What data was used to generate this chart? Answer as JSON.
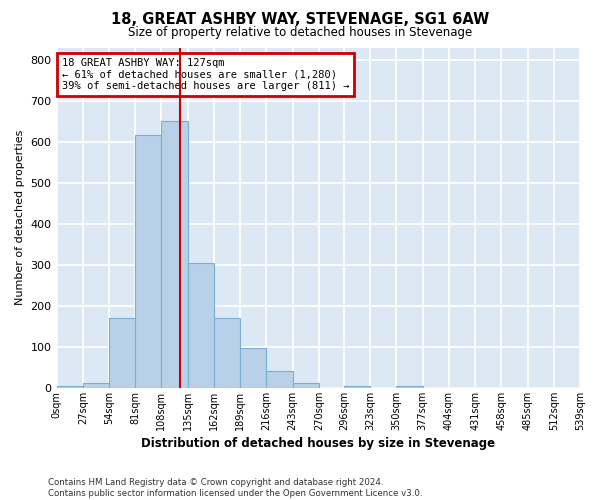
{
  "title": "18, GREAT ASHBY WAY, STEVENAGE, SG1 6AW",
  "subtitle": "Size of property relative to detached houses in Stevenage",
  "xlabel": "Distribution of detached houses by size in Stevenage",
  "ylabel": "Number of detached properties",
  "bin_edges": [
    0,
    27,
    54,
    81,
    108,
    135,
    162,
    189,
    216,
    243,
    270,
    296,
    323,
    350,
    377,
    404,
    431,
    458,
    485,
    512,
    539
  ],
  "bin_labels": [
    "0sqm",
    "27sqm",
    "54sqm",
    "81sqm",
    "108sqm",
    "135sqm",
    "162sqm",
    "189sqm",
    "216sqm",
    "243sqm",
    "270sqm",
    "296sqm",
    "323sqm",
    "350sqm",
    "377sqm",
    "404sqm",
    "431sqm",
    "458sqm",
    "485sqm",
    "512sqm",
    "539sqm"
  ],
  "bar_heights": [
    5,
    12,
    170,
    617,
    650,
    305,
    170,
    97,
    42,
    12,
    0,
    5,
    0,
    5,
    0,
    0,
    0,
    0,
    0,
    0
  ],
  "bar_color": "#b8d0e8",
  "bar_edge_color": "#7aafd4",
  "bg_color": "#dde8f5",
  "grid_color": "#ffffff",
  "annotation_line1": "18 GREAT ASHBY WAY: 127sqm",
  "annotation_line2": "← 61% of detached houses are smaller (1,280)",
  "annotation_line3": "39% of semi-detached houses are larger (811) →",
  "annotation_box_color": "#cc0000",
  "property_size": 127,
  "ylim": [
    0,
    830
  ],
  "yticks": [
    0,
    100,
    200,
    300,
    400,
    500,
    600,
    700,
    800
  ],
  "footer_line1": "Contains HM Land Registry data © Crown copyright and database right 2024.",
  "footer_line2": "Contains public sector information licensed under the Open Government Licence v3.0."
}
